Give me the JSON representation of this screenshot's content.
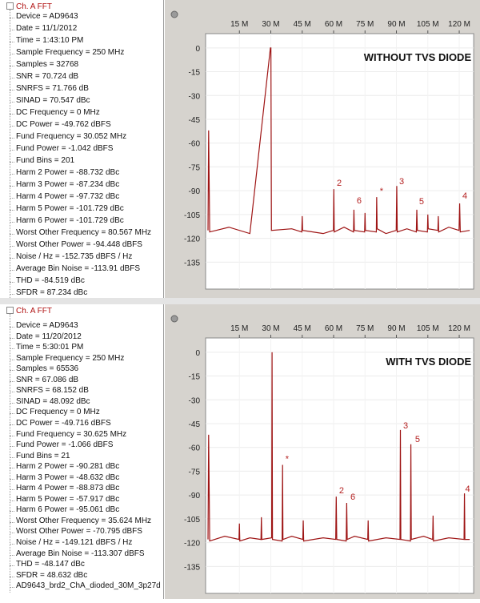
{
  "panels": [
    {
      "tree": {
        "root": "Ch. A FFT",
        "items": [
          "Device = AD9643",
          "Date = 11/1/2012",
          "Time = 1:43:10 PM",
          "Sample Frequency = 250 MHz",
          "Samples = 32768",
          "SNR = 70.724 dB",
          "SNRFS = 71.766 dB",
          "SINAD = 70.547 dBc",
          "DC Frequency = 0 MHz",
          "DC Power = -49.762 dBFS",
          "Fund Frequency = 30.052 MHz",
          "Fund Power = -1.042 dBFS",
          "Fund Bins = 201",
          "Harm 2 Power = -88.732 dBc",
          "Harm 3 Power = -87.234 dBc",
          "Harm 4 Power = -97.732 dBc",
          "Harm 5 Power = -101.729 dBc",
          "Harm 6 Power = -101.729 dBc",
          "Worst Other Frequency = 80.567 MHz",
          "Worst Other Power = -94.448 dBFS",
          "Noise / Hz = -152.735 dBFS / Hz",
          "Average Bin Noise = -113.91 dBFS",
          "THD = -84.519 dBc",
          "SFDR = 87.234 dBc"
        ]
      }
    },
    {
      "tree": {
        "root": "Ch. A FFT",
        "items": [
          "Device = AD9643",
          "Date = 11/20/2012",
          "Time = 5:30:01 PM",
          "Sample Frequency = 250 MHz",
          "Samples = 65536",
          "SNR = 67.086 dB",
          "SNRFS = 68.152 dB",
          "SINAD = 48.092 dBc",
          "DC Frequency = 0 MHz",
          "DC Power = -49.716 dBFS",
          "Fund Frequency = 30.625 MHz",
          "Fund Power = -1.066 dBFS",
          "Fund Bins = 21",
          "Harm 2 Power = -90.281 dBc",
          "Harm 3 Power = -48.632 dBc",
          "Harm 4 Power = -88.873 dBc",
          "Harm 5 Power = -57.917 dBc",
          "Harm 6 Power = -95.061 dBc",
          "Worst Other Frequency = 35.624 MHz",
          "Worst Other Power = -70.795 dBFS",
          "Noise / Hz = -149.121 dBFS / Hz",
          "Average Bin Noise = -113.307 dBFS",
          "THD = -48.147 dBc",
          "SFDR = 48.632 dBc",
          "AD9643_brd2_ChA_dioded_30M_3p27d"
        ]
      }
    }
  ],
  "chart_data": [
    {
      "type": "line",
      "title": "WITHOUT TVS DIODE",
      "color": "#9e1414",
      "x": [
        0,
        0.3,
        0.8,
        10,
        20,
        29.8,
        30.05,
        30.3,
        40,
        44.8,
        45,
        45.2,
        55,
        59.9,
        60.1,
        60.3,
        65,
        69.5,
        69.7,
        69.9,
        74.8,
        75,
        75.2,
        80.4,
        80.57,
        80.8,
        85,
        89.9,
        90.16,
        90.4,
        95,
        99.5,
        99.74,
        100,
        104.8,
        105,
        105.2,
        109.8,
        110,
        110.2,
        115,
        119.9,
        120.2,
        120.5,
        125
      ],
      "values": [
        -115,
        -52,
        -116,
        -113,
        -117,
        0,
        0,
        -115,
        -114,
        -116,
        -106,
        -115,
        -117,
        -115,
        -89,
        -116,
        -113,
        -116,
        -102,
        -115,
        -116,
        -104,
        -115,
        -116,
        -94,
        -114,
        -117,
        -115,
        -87,
        -116,
        -114,
        -116,
        -102,
        -115,
        -116,
        -105,
        -114,
        -115,
        -106,
        -116,
        -113,
        -115,
        -98,
        -116,
        -115
      ],
      "xlim": [
        0,
        125
      ],
      "ylim": [
        -152,
        9
      ],
      "xticks": [
        {
          "value": 15,
          "label": "15 M"
        },
        {
          "value": 30,
          "label": "30 M"
        },
        {
          "value": 45,
          "label": "45 M"
        },
        {
          "value": 60,
          "label": "60 M"
        },
        {
          "value": 75,
          "label": "75 M"
        },
        {
          "value": 90,
          "label": "90 M"
        },
        {
          "value": 105,
          "label": "105 M"
        },
        {
          "value": 120,
          "label": "120 M"
        }
      ],
      "yticks": [
        0,
        -15,
        -30,
        -45,
        -60,
        -75,
        -90,
        -105,
        -120,
        -135
      ],
      "grid": true,
      "annotations": [
        {
          "text": "2",
          "x": 62.7,
          "y": -87
        },
        {
          "text": "6",
          "x": 72.2,
          "y": -98
        },
        {
          "text": "*",
          "x": 82.9,
          "y": -92
        },
        {
          "text": "3",
          "x": 92.5,
          "y": -86
        },
        {
          "text": "5",
          "x": 102,
          "y": -98.5
        },
        {
          "text": "4",
          "x": 122.7,
          "y": -95
        }
      ]
    },
    {
      "type": "line",
      "title": "WITH TVS DIODE",
      "color": "#9e1414",
      "x": [
        0,
        0.3,
        0.8,
        8,
        14.8,
        15,
        15.2,
        20,
        25.3,
        25.5,
        25.7,
        30.4,
        30.6,
        30.8,
        35.4,
        35.62,
        35.8,
        40,
        45.3,
        45.5,
        45.7,
        55,
        61,
        61.25,
        61.5,
        66,
        66.25,
        66.5,
        70,
        76.3,
        76.5,
        76.7,
        85,
        91.7,
        91.9,
        92.1,
        96.7,
        96.9,
        97.1,
        103,
        107.3,
        107.5,
        107.7,
        115,
        122.3,
        122.5,
        122.7,
        125
      ],
      "values": [
        -118,
        -52,
        -119,
        -116,
        -118,
        -108,
        -119,
        -117,
        -118,
        -104,
        -118,
        -117,
        0,
        -118,
        -119,
        -71,
        -118,
        -116,
        -118,
        -106,
        -119,
        -117,
        -118,
        -91,
        -118,
        -119,
        -95,
        -118,
        -116,
        -118,
        -106,
        -119,
        -117,
        -118,
        -49,
        -118,
        -119,
        -58,
        -118,
        -116,
        -118,
        -103,
        -119,
        -117,
        -118,
        -89,
        -118,
        -118
      ],
      "xlim": [
        0,
        125
      ],
      "ylim": [
        -152,
        9
      ],
      "xticks": [
        {
          "value": 15,
          "label": "15 M"
        },
        {
          "value": 30,
          "label": "30 M"
        },
        {
          "value": 45,
          "label": "45 M"
        },
        {
          "value": 60,
          "label": "60 M"
        },
        {
          "value": 75,
          "label": "75 M"
        },
        {
          "value": 90,
          "label": "90 M"
        },
        {
          "value": 105,
          "label": "105 M"
        },
        {
          "value": 120,
          "label": "120 M"
        }
      ],
      "yticks": [
        0,
        -15,
        -30,
        -45,
        -60,
        -75,
        -90,
        -105,
        -120,
        -135
      ],
      "grid": true,
      "annotations": [
        {
          "text": "*",
          "x": 37.8,
          "y": -69
        },
        {
          "text": "2",
          "x": 63.8,
          "y": -89
        },
        {
          "text": "6",
          "x": 69.2,
          "y": -93
        },
        {
          "text": "3",
          "x": 94.4,
          "y": -48
        },
        {
          "text": "5",
          "x": 100.1,
          "y": -56.6
        },
        {
          "text": "4",
          "x": 124,
          "y": -88
        }
      ]
    }
  ]
}
